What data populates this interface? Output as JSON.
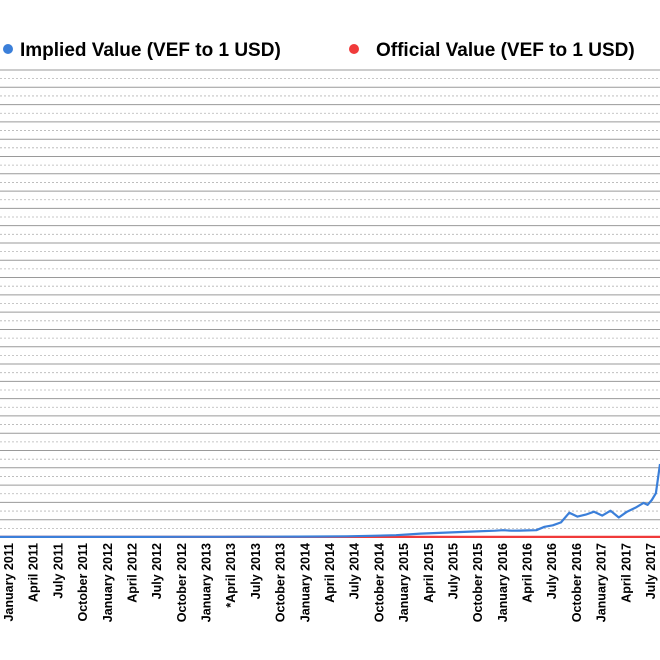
{
  "chart_data": {
    "type": "line",
    "title": "",
    "xlabel": "",
    "ylabel": "",
    "legend": "top",
    "grid": true,
    "x_tick_labels": [
      "January 2011",
      "April 2011",
      "July 2011",
      "October 2011",
      "January 2012",
      "April 2012",
      "July 2012",
      "October 2012",
      "January 2013",
      "*April 2013",
      "July 2013",
      "October 2013",
      "January 2014",
      "April 2014",
      "July 2014",
      "October 2014",
      "January 2015",
      "April 2015",
      "July 2015",
      "October 2015",
      "January 2016",
      "April 2016",
      "July 2016",
      "October 2016",
      "January 2017",
      "April 2017",
      "July 2017"
    ],
    "series": [
      {
        "name": "Implied Value (VEF to 1 USD)",
        "color": "#3b7fd9",
        "x": [
          0,
          3,
          6,
          9,
          12,
          15,
          18,
          21,
          24,
          27,
          30,
          33,
          36,
          39,
          42,
          45,
          48,
          51,
          54,
          57,
          60,
          61,
          62,
          63,
          64,
          65,
          66,
          67,
          68,
          69,
          70,
          71,
          72,
          73,
          74,
          75,
          76,
          77,
          78,
          78.5,
          79,
          79.5,
          80
        ],
        "y": [
          0.1,
          0.1,
          0.1,
          0.1,
          0.1,
          0.1,
          0.1,
          0.2,
          0.2,
          0.2,
          0.3,
          0.3,
          0.4,
          0.5,
          0.7,
          1.2,
          1.8,
          3.5,
          4.5,
          5.5,
          6.5,
          7.0,
          6.5,
          6.6,
          6.8,
          7.0,
          10.5,
          12.0,
          15.0,
          25.0,
          21.0,
          23.0,
          26.0,
          22.0,
          27.0,
          20.0,
          26.0,
          30.0,
          35.0,
          33.0,
          38.0,
          45.0,
          75.0
        ]
      },
      {
        "name": "Official Value (VEF to 1 USD)",
        "color": "#f03a3a",
        "x": [
          0,
          80
        ],
        "y": [
          0.1,
          0.1
        ]
      }
    ],
    "xlim": [
      0,
      80
    ],
    "ylim": [
      0,
      480
    ]
  }
}
